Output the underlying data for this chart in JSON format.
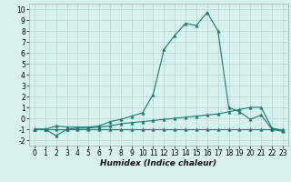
{
  "xlabel": "Humidex (Indice chaleur)",
  "x": [
    0,
    1,
    2,
    3,
    4,
    5,
    6,
    7,
    8,
    9,
    10,
    11,
    12,
    13,
    14,
    15,
    16,
    17,
    18,
    19,
    20,
    21,
    22,
    23
  ],
  "line1": [
    -1.0,
    -1.0,
    -0.7,
    -0.8,
    -0.8,
    -0.8,
    -0.7,
    -0.3,
    -0.1,
    0.2,
    0.5,
    2.2,
    6.3,
    7.6,
    8.7,
    8.5,
    9.7,
    8.0,
    1.0,
    0.6,
    -0.1,
    0.3,
    -1.0,
    -1.2
  ],
  "line2": [
    -1.0,
    -1.0,
    -1.6,
    -1.0,
    -0.9,
    -0.9,
    -0.8,
    -0.7,
    -0.5,
    -0.4,
    -0.3,
    -0.2,
    -0.1,
    0.0,
    0.1,
    0.2,
    0.3,
    0.4,
    0.6,
    0.8,
    1.0,
    1.0,
    -0.9,
    -1.1
  ],
  "line3": [
    -1.0,
    -1.0,
    -1.0,
    -1.0,
    -1.0,
    -1.0,
    -1.0,
    -1.0,
    -1.0,
    -1.0,
    -1.0,
    -1.0,
    -1.0,
    -1.0,
    -1.0,
    -1.0,
    -1.0,
    -1.0,
    -1.0,
    -1.0,
    -1.0,
    -1.0,
    -1.0,
    -1.0
  ],
  "line_color": "#1a7a6e",
  "bg_color": "#d8f0ee",
  "grid_color": "#b8dcd8",
  "ylim": [
    -2.5,
    10.5
  ],
  "xlim": [
    -0.5,
    23.5
  ],
  "yticks": [
    -2,
    -1,
    0,
    1,
    2,
    3,
    4,
    5,
    6,
    7,
    8,
    9,
    10
  ],
  "xticks": [
    0,
    1,
    2,
    3,
    4,
    5,
    6,
    7,
    8,
    9,
    10,
    11,
    12,
    13,
    14,
    15,
    16,
    17,
    18,
    19,
    20,
    21,
    22,
    23
  ],
  "tick_fontsize": 5.5,
  "xlabel_fontsize": 6.5
}
